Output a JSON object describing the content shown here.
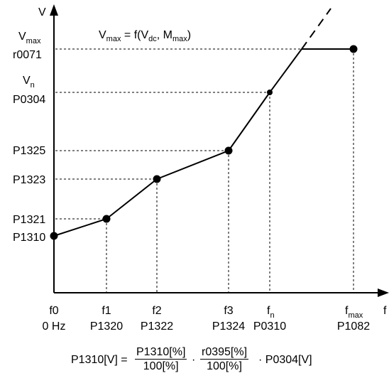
{
  "axes": {
    "y_label": "V",
    "x_label": "f"
  },
  "annotation": {
    "vmax_text": "V",
    "vmax_sub": "max",
    "vmax_rest1": " = f(V",
    "vdc_sub": "dc",
    "vmax_rest2": ", M",
    "mmax_sub": "max",
    "vmax_rest3": ")"
  },
  "y_labels": {
    "vmax": "V",
    "vmax_sub": "max",
    "r0071": "r0071",
    "vn": "V",
    "vn_sub": "n",
    "p0304": "P0304",
    "p1325": "P1325",
    "p1323": "P1323",
    "p1321": "P1321",
    "p1310": "P1310"
  },
  "x_labels": {
    "f0": "f0",
    "hz0": "0 Hz",
    "f1": "f1",
    "p1320": "P1320",
    "f2": "f2",
    "p1322": "P1322",
    "f3": "f3",
    "p1324": "P1324",
    "fn": "f",
    "fn_sub": "n",
    "p0310": "P0310",
    "fmax": "f",
    "fmax_sub": "max",
    "p1082": "P1082"
  },
  "formula": {
    "lhs": "P1310[V] =",
    "frac1_num": "P1310[%]",
    "frac1_den": "100[%]",
    "dot": "·",
    "frac2_num": "r0395[%]",
    "frac2_den": "100[%]",
    "rhs": "· P0304[V]"
  }
}
